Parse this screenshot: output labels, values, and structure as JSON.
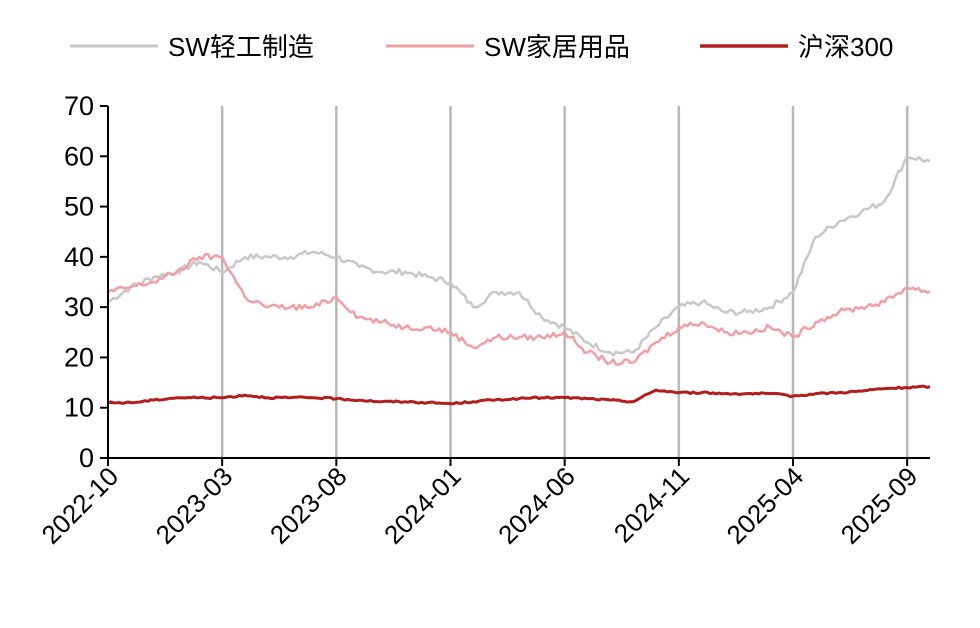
{
  "chart_data": {
    "type": "line",
    "title": "",
    "xlabel": "",
    "ylabel": "",
    "ylim": [
      0,
      70
    ],
    "yticks": [
      0,
      10,
      20,
      30,
      40,
      50,
      60,
      70
    ],
    "x_tick_labels": [
      "2022-10",
      "2023-03",
      "2023-08",
      "2024-01",
      "2024-06",
      "2024-11",
      "2025-04",
      "2025-09"
    ],
    "grid": "vertical lines at each x tick",
    "legend_position": "top",
    "series": [
      {
        "name": "SW轻工制造",
        "color": "#c8c8c8",
        "x": [
          "2022-10",
          "2022-11",
          "2022-12",
          "2023-01",
          "2023-02",
          "2023-03",
          "2023-04",
          "2023-05",
          "2023-06",
          "2023-07",
          "2023-08",
          "2023-09",
          "2023-10",
          "2023-11",
          "2023-12",
          "2024-01",
          "2024-02",
          "2024-03",
          "2024-04",
          "2024-05",
          "2024-06",
          "2024-07",
          "2024-08",
          "2024-09",
          "2024-10",
          "2024-11",
          "2024-12",
          "2025-01",
          "2025-02",
          "2025-03",
          "2025-04",
          "2025-05",
          "2025-06",
          "2025-07",
          "2025-08",
          "2025-09",
          "2025-10"
        ],
        "values": [
          31,
          34,
          36,
          37,
          39,
          37,
          40,
          40,
          40,
          41,
          40,
          38,
          37,
          37,
          36,
          35,
          30,
          33,
          33,
          28,
          26,
          23,
          21,
          21,
          26,
          30,
          31,
          29,
          29,
          30,
          33,
          44,
          47,
          49,
          51,
          60,
          59
        ]
      },
      {
        "name": "SW家居用品",
        "color": "#f0a0a4",
        "x": [
          "2022-10",
          "2022-11",
          "2022-12",
          "2023-01",
          "2023-02",
          "2023-03",
          "2023-04",
          "2023-05",
          "2023-06",
          "2023-07",
          "2023-08",
          "2023-09",
          "2023-10",
          "2023-11",
          "2023-12",
          "2024-01",
          "2024-02",
          "2024-03",
          "2024-04",
          "2024-05",
          "2024-06",
          "2024-07",
          "2024-08",
          "2024-09",
          "2024-10",
          "2024-11",
          "2024-12",
          "2025-01",
          "2025-02",
          "2025-03",
          "2025-04",
          "2025-05",
          "2025-06",
          "2025-07",
          "2025-08",
          "2025-09",
          "2025-10"
        ],
        "values": [
          33,
          34,
          35,
          37,
          40,
          40,
          32,
          30,
          30,
          30,
          32,
          28,
          27,
          26,
          26,
          25,
          22,
          24,
          24,
          24,
          25,
          21,
          19,
          19,
          23,
          26,
          27,
          25,
          25,
          26,
          24,
          27,
          29,
          30,
          31,
          34,
          33
        ]
      },
      {
        "name": "沪深300",
        "color": "#b01e1e",
        "x": [
          "2022-10",
          "2022-11",
          "2022-12",
          "2023-01",
          "2023-02",
          "2023-03",
          "2023-04",
          "2023-05",
          "2023-06",
          "2023-07",
          "2023-08",
          "2023-09",
          "2023-10",
          "2023-11",
          "2023-12",
          "2024-01",
          "2024-02",
          "2024-03",
          "2024-04",
          "2024-05",
          "2024-06",
          "2024-07",
          "2024-08",
          "2024-09",
          "2024-10",
          "2024-11",
          "2024-12",
          "2025-01",
          "2025-02",
          "2025-03",
          "2025-04",
          "2025-05",
          "2025-06",
          "2025-07",
          "2025-08",
          "2025-09",
          "2025-10"
        ],
        "values": [
          11,
          11,
          11.5,
          12,
          12,
          12,
          12.5,
          12,
          12,
          12,
          11.8,
          11.5,
          11.2,
          11.2,
          11,
          10.8,
          11.2,
          11.6,
          11.8,
          12,
          12,
          11.8,
          11.5,
          11.2,
          13.5,
          13,
          13,
          12.8,
          12.8,
          12.8,
          12.3,
          12.8,
          13,
          13.3,
          13.8,
          14,
          14.2
        ]
      }
    ]
  }
}
